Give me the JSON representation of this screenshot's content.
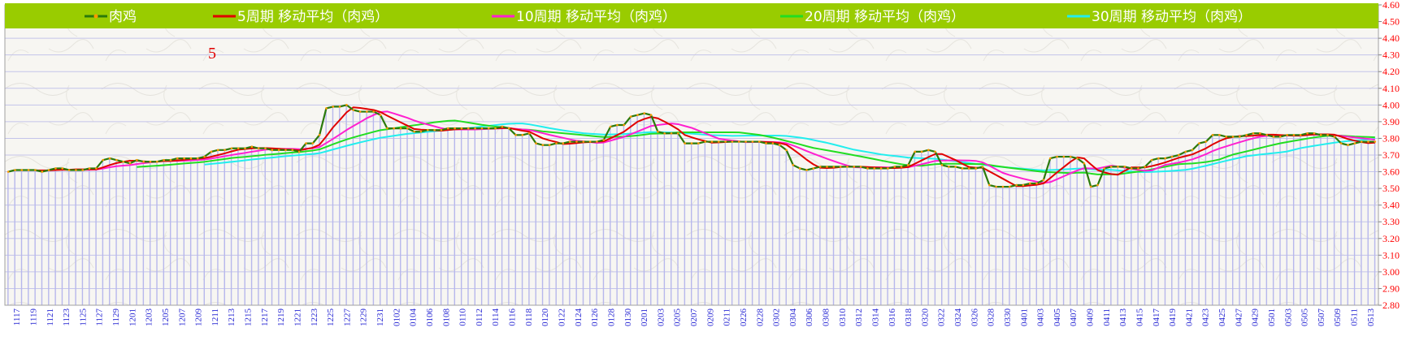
{
  "chart_data": {
    "type": "line",
    "title": "",
    "xlabel": "",
    "ylabel": "",
    "ylim": [
      2.8,
      4.6
    ],
    "y_ticks": [
      "2.80",
      "2.90",
      "3.00",
      "3.10",
      "3.20",
      "3.30",
      "3.40",
      "3.50",
      "3.60",
      "3.70",
      "3.80",
      "3.90",
      "4.00",
      "4.10",
      "4.20",
      "4.30",
      "4.40",
      "4.50",
      "4.60"
    ],
    "x_tick_labels": [
      "1117",
      "1119",
      "1121",
      "1123",
      "1125",
      "1127",
      "1129",
      "1201",
      "1203",
      "1205",
      "1207",
      "1209",
      "1211",
      "1213",
      "1215",
      "1217",
      "1219",
      "1221",
      "1223",
      "1225",
      "1227",
      "1229",
      "1231",
      "0102",
      "0104",
      "0106",
      "0108",
      "0110",
      "0112",
      "0114",
      "0116",
      "0118",
      "0120",
      "0122",
      "0124",
      "0126",
      "0128",
      "0130",
      "0201",
      "0203",
      "0205",
      "0207",
      "0209",
      "0211",
      "0226",
      "0228",
      "0302",
      "0304",
      "0306",
      "0308",
      "0310",
      "0312",
      "0314",
      "0316",
      "0318",
      "0320",
      "0322",
      "0324",
      "0326",
      "0328",
      "0330",
      "0401",
      "0403",
      "0405",
      "0407",
      "0409",
      "0411",
      "0413",
      "0415",
      "0417",
      "0419",
      "0421",
      "0423",
      "0425",
      "0427",
      "0429",
      "0501",
      "0503",
      "0505",
      "0507",
      "0509",
      "0511",
      "0513"
    ],
    "annotation": "5",
    "legend_position": "top",
    "grid": true,
    "colors": {
      "price": "#2b7a0b",
      "price_marker": "#ff9900",
      "ma5": "#e00000",
      "ma10": "#ff20d0",
      "ma20": "#22dd22",
      "ma30": "#22eeee",
      "bars": "#b7b7ec",
      "legend_bg": "#99cc00",
      "grid": "#c4c4ea",
      "axis_text_y": "#ff0000",
      "axis_text_x": "#2a2ad4"
    },
    "series": [
      {
        "name": "肉鸡",
        "values": [
          3.6,
          3.61,
          3.61,
          3.61,
          3.61,
          3.6,
          3.61,
          3.62,
          3.62,
          3.61,
          3.61,
          3.61,
          3.62,
          3.62,
          3.67,
          3.68,
          3.67,
          3.66,
          3.65,
          3.67,
          3.66,
          3.66,
          3.66,
          3.67,
          3.67,
          3.68,
          3.68,
          3.68,
          3.68,
          3.69,
          3.72,
          3.73,
          3.73,
          3.74,
          3.74,
          3.74,
          3.75,
          3.74,
          3.74,
          3.73,
          3.73,
          3.73,
          3.73,
          3.72,
          3.77,
          3.77,
          3.82,
          3.98,
          3.99,
          3.99,
          4.0,
          3.97,
          3.96,
          3.96,
          3.96,
          3.94,
          3.86,
          3.86,
          3.86,
          3.86,
          3.84,
          3.84,
          3.85,
          3.85,
          3.85,
          3.86,
          3.86,
          3.86,
          3.86,
          3.86,
          3.86,
          3.86,
          3.86,
          3.87,
          3.86,
          3.82,
          3.82,
          3.83,
          3.77,
          3.76,
          3.76,
          3.77,
          3.77,
          3.78,
          3.78,
          3.78,
          3.78,
          3.78,
          3.79,
          3.87,
          3.88,
          3.88,
          3.93,
          3.94,
          3.95,
          3.94,
          3.84,
          3.83,
          3.83,
          3.83,
          3.77,
          3.77,
          3.77,
          3.78,
          3.78,
          3.78,
          3.78,
          3.78,
          3.78,
          3.78,
          3.78,
          3.78,
          3.77,
          3.77,
          3.76,
          3.73,
          3.64,
          3.62,
          3.61,
          3.62,
          3.63,
          3.63,
          3.63,
          3.63,
          3.63,
          3.63,
          3.63,
          3.62,
          3.62,
          3.62,
          3.62,
          3.63,
          3.63,
          3.64,
          3.72,
          3.72,
          3.73,
          3.72,
          3.64,
          3.63,
          3.63,
          3.62,
          3.62,
          3.62,
          3.63,
          3.52,
          3.51,
          3.51,
          3.51,
          3.52,
          3.52,
          3.53,
          3.53,
          3.55,
          3.68,
          3.69,
          3.69,
          3.69,
          3.68,
          3.65,
          3.51,
          3.52,
          3.62,
          3.63,
          3.63,
          3.63,
          3.62,
          3.62,
          3.63,
          3.67,
          3.68,
          3.68,
          3.69,
          3.7,
          3.72,
          3.73,
          3.77,
          3.78,
          3.82,
          3.82,
          3.81,
          3.81,
          3.81,
          3.82,
          3.83,
          3.83,
          3.82,
          3.81,
          3.81,
          3.82,
          3.82,
          3.82,
          3.83,
          3.83,
          3.82,
          3.82,
          3.81,
          3.77,
          3.76,
          3.77,
          3.78,
          3.78,
          3.78
        ]
      },
      {
        "name": "5周期 移动平均（肉鸡）",
        "period": 5
      },
      {
        "name": "10周期 移动平均（肉鸡）",
        "period": 10
      },
      {
        "name": "20周期 移动平均（肉鸡）",
        "period": 20
      },
      {
        "name": "30周期 移动平均（肉鸡）",
        "period": 30
      }
    ]
  }
}
